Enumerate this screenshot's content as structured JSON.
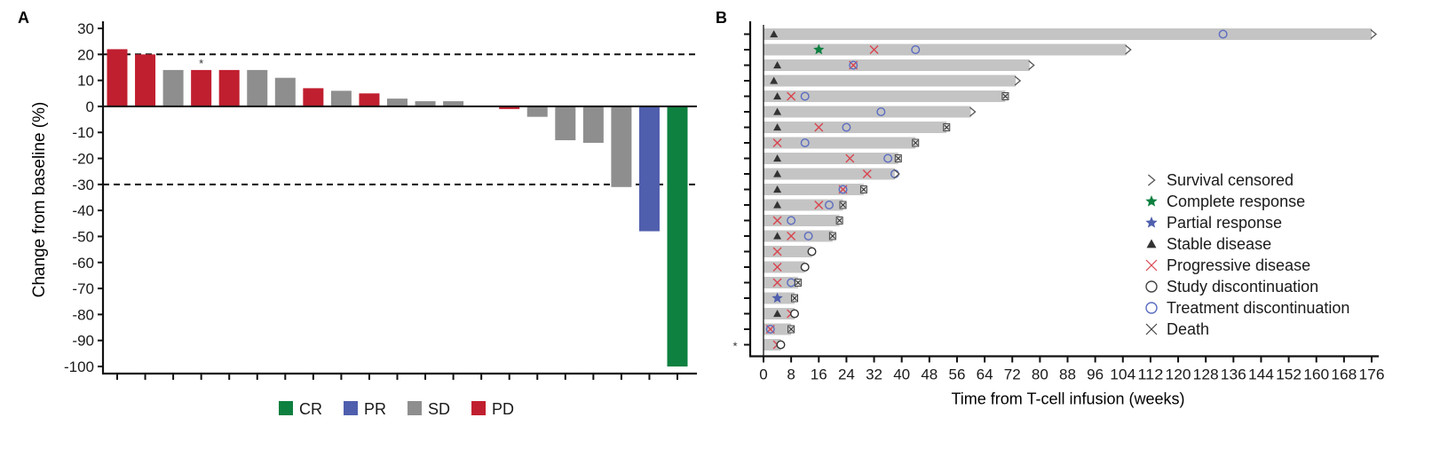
{
  "chart_data": [
    {
      "panel_label": "A",
      "type": "bar",
      "title": "",
      "xlabel": "",
      "ylabel": "Change from baseline (%)",
      "ylim": [
        -100,
        30
      ],
      "yticks": [
        30,
        20,
        10,
        0,
        -10,
        -20,
        -30,
        -40,
        -50,
        -60,
        -70,
        -80,
        -90,
        -100
      ],
      "reference_lines": [
        20,
        -30
      ],
      "grid": false,
      "legend_position": "bottom-center",
      "legend": [
        {
          "key": "CR",
          "label": "CR",
          "color": "#0e8040"
        },
        {
          "key": "PR",
          "label": "PR",
          "color": "#4f5fad"
        },
        {
          "key": "SD",
          "label": "SD",
          "color": "#8e8e8e"
        },
        {
          "key": "PD",
          "label": "PD",
          "color": "#c01f2f"
        }
      ],
      "bars": [
        {
          "value": 22,
          "response": "PD",
          "annotation": ""
        },
        {
          "value": 20,
          "response": "PD",
          "annotation": ""
        },
        {
          "value": 14,
          "response": "SD",
          "annotation": ""
        },
        {
          "value": 14,
          "response": "PD",
          "annotation": "*"
        },
        {
          "value": 14,
          "response": "PD",
          "annotation": ""
        },
        {
          "value": 14,
          "response": "SD",
          "annotation": ""
        },
        {
          "value": 11,
          "response": "SD",
          "annotation": ""
        },
        {
          "value": 7,
          "response": "PD",
          "annotation": ""
        },
        {
          "value": 6,
          "response": "SD",
          "annotation": ""
        },
        {
          "value": 5,
          "response": "PD",
          "annotation": ""
        },
        {
          "value": 3,
          "response": "SD",
          "annotation": ""
        },
        {
          "value": 2,
          "response": "SD",
          "annotation": ""
        },
        {
          "value": 2,
          "response": "SD",
          "annotation": ""
        },
        {
          "value": 0,
          "response": "SD",
          "annotation": ""
        },
        {
          "value": -1,
          "response": "PD",
          "annotation": ""
        },
        {
          "value": -4,
          "response": "SD",
          "annotation": ""
        },
        {
          "value": -13,
          "response": "SD",
          "annotation": ""
        },
        {
          "value": -14,
          "response": "SD",
          "annotation": ""
        },
        {
          "value": -31,
          "response": "SD",
          "annotation": ""
        },
        {
          "value": -48,
          "response": "PR",
          "annotation": ""
        },
        {
          "value": -100,
          "response": "CR",
          "annotation": ""
        }
      ]
    },
    {
      "panel_label": "B",
      "type": "swimmer",
      "title": "",
      "xlabel": "Time from T-cell infusion (weeks)",
      "ylabel": "",
      "xlim": [
        0,
        176
      ],
      "xticks": [
        0,
        8,
        16,
        24,
        32,
        40,
        48,
        56,
        64,
        72,
        80,
        88,
        96,
        104,
        112,
        120,
        128,
        136,
        144,
        152,
        160,
        168,
        176
      ],
      "legend_position": "right",
      "legend": [
        {
          "key": "censored",
          "label": "Survival censored",
          "symbol": ">",
          "color": "#555555"
        },
        {
          "key": "cr",
          "label": "Complete response",
          "symbol": "star",
          "color": "#0e8040"
        },
        {
          "key": "pr",
          "label": "Partial response",
          "symbol": "star",
          "color": "#4f5fad"
        },
        {
          "key": "sd",
          "label": "Stable disease",
          "symbol": "triangle",
          "color": "#333333"
        },
        {
          "key": "pd",
          "label": "Progressive disease",
          "symbol": "x",
          "color": "#d9454f"
        },
        {
          "key": "study_dc",
          "label": "Study discontinuation",
          "symbol": "circle",
          "color": "#333333"
        },
        {
          "key": "treat_dc",
          "label": "Treatment discontinuation",
          "symbol": "circle",
          "color": "#5b6cc0"
        },
        {
          "key": "death",
          "label": "Death",
          "symbol": "x",
          "color": "#333333"
        }
      ],
      "patients": [
        {
          "duration": 176,
          "end": "censored",
          "annotation": "",
          "events": [
            {
              "t": 3,
              "type": "sd"
            },
            {
              "t": 133,
              "type": "treat_dc"
            }
          ]
        },
        {
          "duration": 105,
          "end": "censored",
          "annotation": "",
          "events": [
            {
              "t": 16,
              "type": "cr"
            },
            {
              "t": 32,
              "type": "pd"
            },
            {
              "t": 44,
              "type": "treat_dc"
            }
          ]
        },
        {
          "duration": 77,
          "end": "censored",
          "annotation": "",
          "events": [
            {
              "t": 4,
              "type": "sd"
            },
            {
              "t": 26,
              "type": "pd"
            },
            {
              "t": 26,
              "type": "treat_dc"
            }
          ]
        },
        {
          "duration": 73,
          "end": "censored",
          "annotation": "",
          "events": [
            {
              "t": 3,
              "type": "sd"
            }
          ]
        },
        {
          "duration": 70,
          "end": "death",
          "annotation": "",
          "events": [
            {
              "t": 4,
              "type": "sd"
            },
            {
              "t": 8,
              "type": "pd"
            },
            {
              "t": 12,
              "type": "treat_dc"
            }
          ]
        },
        {
          "duration": 60,
          "end": "censored",
          "annotation": "",
          "events": [
            {
              "t": 4,
              "type": "sd"
            },
            {
              "t": 34,
              "type": "treat_dc"
            }
          ]
        },
        {
          "duration": 53,
          "end": "death",
          "annotation": "",
          "events": [
            {
              "t": 4,
              "type": "sd"
            },
            {
              "t": 16,
              "type": "pd"
            },
            {
              "t": 24,
              "type": "treat_dc"
            }
          ]
        },
        {
          "duration": 44,
          "end": "death",
          "annotation": "",
          "events": [
            {
              "t": 4,
              "type": "pd"
            },
            {
              "t": 12,
              "type": "treat_dc"
            }
          ]
        },
        {
          "duration": 39,
          "end": "death",
          "annotation": "",
          "events": [
            {
              "t": 4,
              "type": "sd"
            },
            {
              "t": 25,
              "type": "pd"
            },
            {
              "t": 36,
              "type": "treat_dc"
            }
          ]
        },
        {
          "duration": 38,
          "end": "censored",
          "annotation": "",
          "events": [
            {
              "t": 4,
              "type": "sd"
            },
            {
              "t": 30,
              "type": "pd"
            },
            {
              "t": 38,
              "type": "treat_dc"
            }
          ]
        },
        {
          "duration": 29,
          "end": "death",
          "annotation": "",
          "events": [
            {
              "t": 4,
              "type": "sd"
            },
            {
              "t": 23,
              "type": "pd"
            },
            {
              "t": 23,
              "type": "treat_dc"
            }
          ]
        },
        {
          "duration": 23,
          "end": "death",
          "annotation": "",
          "events": [
            {
              "t": 4,
              "type": "sd"
            },
            {
              "t": 16,
              "type": "pd"
            },
            {
              "t": 19,
              "type": "treat_dc"
            }
          ]
        },
        {
          "duration": 22,
          "end": "death",
          "annotation": "",
          "events": [
            {
              "t": 4,
              "type": "pd"
            },
            {
              "t": 8,
              "type": "treat_dc"
            }
          ]
        },
        {
          "duration": 20,
          "end": "death",
          "annotation": "",
          "events": [
            {
              "t": 4,
              "type": "sd"
            },
            {
              "t": 8,
              "type": "pd"
            },
            {
              "t": 13,
              "type": "treat_dc"
            }
          ]
        },
        {
          "duration": 14,
          "end": "study_dc",
          "annotation": "",
          "events": [
            {
              "t": 4,
              "type": "pd"
            }
          ]
        },
        {
          "duration": 12,
          "end": "study_dc",
          "annotation": "",
          "events": [
            {
              "t": 4,
              "type": "pd"
            }
          ]
        },
        {
          "duration": 10,
          "end": "death",
          "annotation": "",
          "events": [
            {
              "t": 4,
              "type": "pd"
            },
            {
              "t": 8,
              "type": "treat_dc"
            }
          ]
        },
        {
          "duration": 9,
          "end": "death",
          "annotation": "",
          "events": [
            {
              "t": 4,
              "type": "pr"
            }
          ]
        },
        {
          "duration": 9,
          "end": "study_dc",
          "annotation": "",
          "events": [
            {
              "t": 4,
              "type": "sd"
            },
            {
              "t": 8,
              "type": "pd"
            }
          ]
        },
        {
          "duration": 8,
          "end": "death",
          "annotation": "",
          "events": [
            {
              "t": 2,
              "type": "pd"
            },
            {
              "t": 2,
              "type": "treat_dc"
            }
          ]
        },
        {
          "duration": 5,
          "end": "study_dc",
          "annotation": "*",
          "events": [
            {
              "t": 4,
              "type": "pd"
            }
          ]
        }
      ]
    }
  ]
}
